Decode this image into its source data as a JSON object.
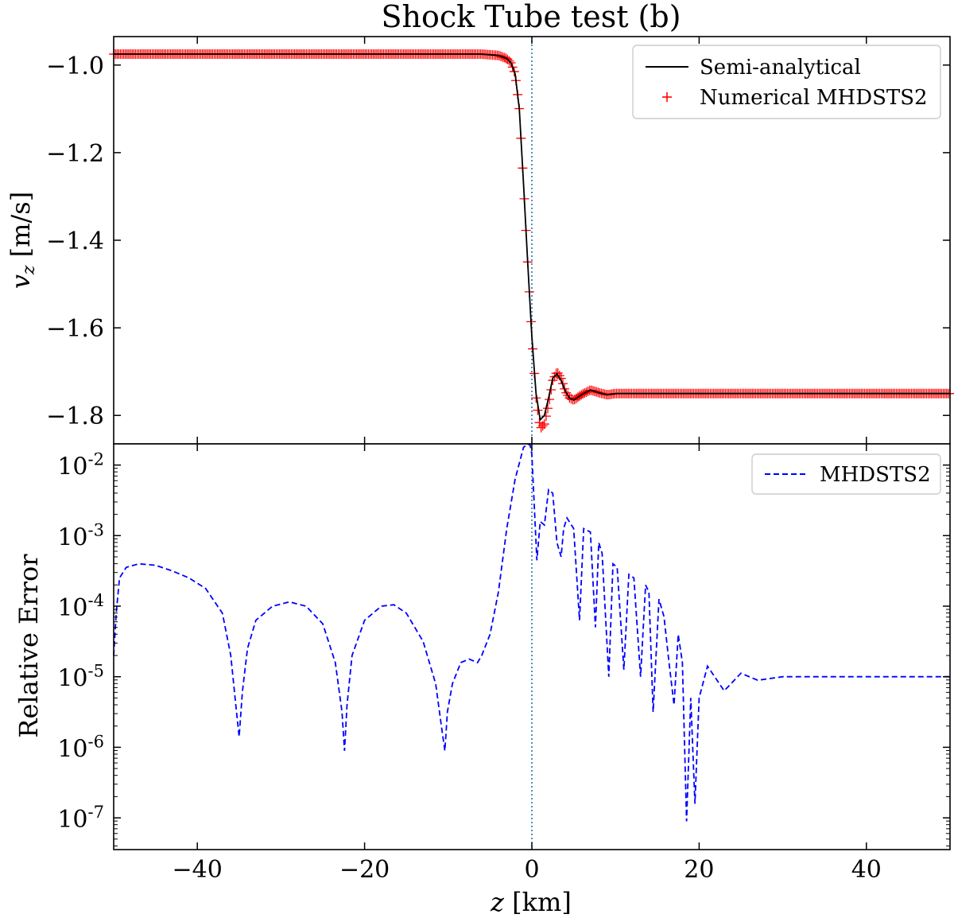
{
  "chart_data": [
    {
      "type": "line",
      "title": "Shock Tube test (b)",
      "ylabel": "v_z [m/s]",
      "ylabel_var": "v",
      "ylabel_sub": "z",
      "ylabel_unit": " [m/s]",
      "xlim": [
        -50,
        50
      ],
      "ylim": [
        -1.865,
        -0.935
      ],
      "yticks": [
        -1.0,
        -1.2,
        -1.4,
        -1.6,
        -1.8
      ],
      "ytick_labels": [
        "−1.0",
        "−1.2",
        "−1.4",
        "−1.6",
        "−1.8"
      ],
      "vline_x": 0,
      "legend_position": "upper right",
      "series": [
        {
          "name": "Semi-analytical",
          "style": "solid",
          "color": "#000000",
          "x": [
            -50,
            -6,
            -4,
            -3,
            -2.5,
            -2,
            -1.5,
            -1,
            -0.5,
            0,
            0.5,
            1,
            1.5,
            2,
            2.5,
            3,
            3.5,
            4,
            4.5,
            5,
            6,
            7,
            8,
            9,
            10,
            12,
            50
          ],
          "y": [
            -0.975,
            -0.975,
            -0.978,
            -0.985,
            -0.995,
            -1.02,
            -1.1,
            -1.27,
            -1.45,
            -1.62,
            -1.75,
            -1.81,
            -1.8,
            -1.76,
            -1.715,
            -1.705,
            -1.72,
            -1.745,
            -1.76,
            -1.765,
            -1.752,
            -1.742,
            -1.748,
            -1.753,
            -1.75,
            -1.75,
            -1.75
          ]
        },
        {
          "name": "Numerical MHDSTS2",
          "style": "markers",
          "color": "#ff0000",
          "x": [
            -50,
            -6,
            -4,
            -3,
            -2.5,
            -2,
            -1.5,
            -1,
            -0.5,
            0,
            0.5,
            1,
            1.5,
            2,
            2.5,
            3,
            3.5,
            4,
            4.5,
            5,
            6,
            7,
            8,
            9,
            10,
            12,
            50
          ],
          "y": [
            -0.975,
            -0.975,
            -0.978,
            -0.985,
            -0.995,
            -1.02,
            -1.1,
            -1.27,
            -1.45,
            -1.62,
            -1.76,
            -1.83,
            -1.82,
            -1.775,
            -1.72,
            -1.7,
            -1.715,
            -1.745,
            -1.76,
            -1.765,
            -1.752,
            -1.742,
            -1.748,
            -1.753,
            -1.75,
            -1.75,
            -1.75
          ]
        }
      ]
    },
    {
      "type": "line",
      "ylabel": "Relative Error",
      "xlabel": "z [km]",
      "xlabel_var": "z",
      "xlabel_unit": " [km]",
      "xlim": [
        -50,
        50
      ],
      "ylog": true,
      "ylim_log10": [
        -7.45,
        -1.7
      ],
      "yticks_log10": [
        -2,
        -3,
        -4,
        -5,
        -6,
        -7
      ],
      "ytick_base": "10",
      "ytick_exponents": [
        "-2",
        "-3",
        "-4",
        "-5",
        "-6",
        "-7"
      ],
      "xticks": [
        -40,
        -20,
        0,
        20,
        40
      ],
      "xtick_labels": [
        "−40",
        "−20",
        "0",
        "20",
        "40"
      ],
      "vline_x": 0,
      "legend_position": "upper right",
      "series": [
        {
          "name": "MHDSTS2",
          "style": "dashed",
          "color": "#0000ff",
          "x": [
            -50,
            -49.7,
            -49.3,
            -48.5,
            -47,
            -45,
            -43,
            -41,
            -39,
            -37,
            -36,
            -35.4,
            -35,
            -34.6,
            -34,
            -33,
            -31,
            -29,
            -27,
            -25,
            -23.5,
            -22.7,
            -22.4,
            -22.1,
            -21.5,
            -20,
            -18,
            -16.5,
            -15,
            -13,
            -11.5,
            -10.7,
            -10.4,
            -10.1,
            -9.5,
            -8.5,
            -7.5,
            -6.5,
            -6,
            -5,
            -4,
            -3,
            -2,
            -1,
            -0.5,
            -0.2,
            0,
            0.3,
            0.6,
            1,
            1.5,
            2,
            2.5,
            3,
            3.5,
            3.8,
            4.2,
            5,
            5.7,
            6.2,
            7,
            7.6,
            8,
            8.4,
            9.2,
            9.7,
            10.2,
            11,
            11.6,
            12.2,
            13,
            13.6,
            14,
            14.5,
            15.2,
            15.8,
            16.4,
            17,
            17.5,
            18,
            18.5,
            19,
            19.5,
            20,
            21,
            23,
            25,
            27,
            30,
            50
          ],
          "y": [
            -4.7,
            -4.1,
            -3.6,
            -3.45,
            -3.4,
            -3.42,
            -3.5,
            -3.6,
            -3.75,
            -4.1,
            -4.7,
            -5.4,
            -5.85,
            -5.2,
            -4.6,
            -4.2,
            -4.0,
            -3.94,
            -4.0,
            -4.25,
            -4.8,
            -5.5,
            -6.05,
            -5.4,
            -4.7,
            -4.2,
            -4.0,
            -3.98,
            -4.1,
            -4.5,
            -5.1,
            -5.8,
            -6.05,
            -5.5,
            -5.1,
            -4.8,
            -4.75,
            -4.8,
            -4.7,
            -4.4,
            -3.8,
            -2.9,
            -2.2,
            -1.75,
            -1.7,
            -1.72,
            -1.85,
            -2.6,
            -3.35,
            -2.8,
            -2.85,
            -2.35,
            -2.4,
            -3.1,
            -3.3,
            -2.9,
            -2.75,
            -2.9,
            -4.2,
            -2.9,
            -2.95,
            -4.3,
            -3.1,
            -3.25,
            -5.0,
            -3.4,
            -3.45,
            -4.9,
            -3.55,
            -3.6,
            -5.0,
            -3.7,
            -3.8,
            -5.5,
            -3.9,
            -4.15,
            -4.8,
            -5.4,
            -4.4,
            -4.8,
            -7.05,
            -5.3,
            -6.8,
            -5.3,
            -4.85,
            -5.2,
            -4.95,
            -5.05,
            -5.0,
            -5.0
          ]
        }
      ]
    }
  ]
}
